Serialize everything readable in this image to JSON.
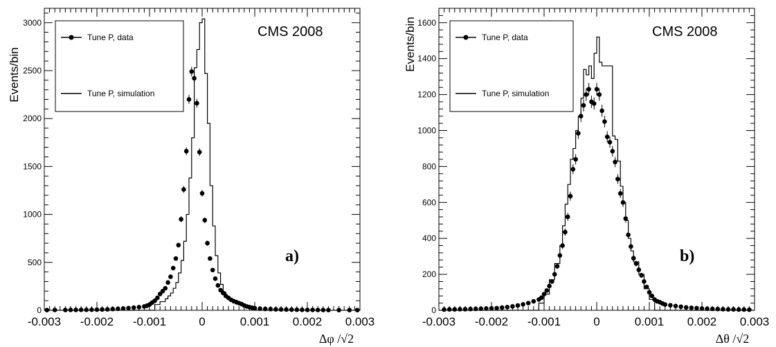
{
  "chart_data": [
    {
      "type": "histogram",
      "panel_label": "a)",
      "experiment_label": "CMS 2008",
      "ylabel": "Events/bin",
      "xlabel": "Δφ /√2",
      "xlim": [
        -0.003,
        0.003
      ],
      "ylim": [
        0,
        3150
      ],
      "xticks": [
        -0.003,
        -0.002,
        -0.001,
        0,
        0.001,
        0.002,
        0.003
      ],
      "xtick_labels": [
        "-0.003",
        "-0.002",
        "-0.001",
        "0",
        "0.001",
        "0.002",
        "0.003"
      ],
      "yticks": [
        0,
        500,
        1000,
        1500,
        2000,
        2500,
        3000
      ],
      "ytick_labels": [
        "0",
        "500",
        "1000",
        "1500",
        "2000",
        "2500",
        "3000"
      ],
      "legend_placement": "top-left",
      "series": [
        {
          "name": "Tune P, data",
          "style": "points-with-errors",
          "color": "#000000",
          "x": [
            -0.00295,
            -0.0028,
            -0.0026,
            -0.0025,
            -0.0024,
            -0.0023,
            -0.0022,
            -0.0021,
            -0.002,
            -0.0019,
            -0.0018,
            -0.0017,
            -0.0016,
            -0.0015,
            -0.0014,
            -0.0013,
            -0.0012,
            -0.0011,
            -0.00105,
            -0.001,
            -0.00095,
            -0.0009,
            -0.00085,
            -0.0008,
            -0.00075,
            -0.0007,
            -0.00065,
            -0.0006,
            -0.00055,
            -0.0005,
            -0.00045,
            -0.0004,
            -0.00035,
            -0.0003,
            -0.00025,
            -0.0002,
            -0.00015,
            -0.0001,
            -5e-05,
            0.0,
            5e-05,
            0.0001,
            0.00015,
            0.0002,
            0.00025,
            0.0003,
            0.00035,
            0.0004,
            0.00045,
            0.0005,
            0.00055,
            0.0006,
            0.00065,
            0.0007,
            0.00075,
            0.0008,
            0.00085,
            0.0009,
            0.00095,
            0.001,
            0.0011,
            0.0012,
            0.0013,
            0.0014,
            0.0015,
            0.0016,
            0.0017,
            0.0018,
            0.0019,
            0.002,
            0.0021,
            0.0022,
            0.0023,
            0.0024,
            0.0026,
            0.0028,
            0.00295
          ],
          "y": [
            2,
            3,
            3,
            4,
            4,
            5,
            5,
            6,
            7,
            9,
            10,
            13,
            16,
            19,
            23,
            28,
            33,
            40,
            48,
            60,
            80,
            100,
            130,
            170,
            200,
            230,
            290,
            350,
            440,
            540,
            680,
            950,
            1260,
            1660,
            2200,
            2490,
            2420,
            2160,
            1650,
            1220,
            940,
            700,
            540,
            420,
            330,
            260,
            210,
            180,
            150,
            130,
            110,
            95,
            85,
            75,
            65,
            50,
            40,
            33,
            27,
            22,
            17,
            14,
            12,
            10,
            9,
            8,
            7,
            6,
            5,
            4,
            4,
            3,
            3,
            2,
            2,
            2,
            2
          ],
          "note_x_fixed": [
            -0.002,
            -0.0015,
            -0.001,
            -0.0007,
            -0.0006,
            -0.0005,
            -0.0004,
            -0.0003,
            -0.0002,
            -0.00015,
            -0.0001,
            -5e-05,
            0.0,
            5e-05,
            0.0001,
            0.00015,
            0.0002,
            0.00025,
            0.0003,
            0.00035,
            0.0004,
            0.0005,
            0.0006,
            0.0007,
            0.0008,
            0.0009,
            0.001,
            0.0012,
            0.0015,
            0.002
          ]
        },
        {
          "name": "Tune P, simulation",
          "style": "step",
          "color": "#000000",
          "bin_edges": [
            -0.003,
            -0.0009,
            -0.0008,
            -0.0007,
            -0.00065,
            -0.0006,
            -0.00055,
            -0.0005,
            -0.00045,
            -0.0004,
            -0.00035,
            -0.0003,
            -0.00025,
            -0.0002,
            -0.00015,
            -0.0001,
            -5e-05,
            0.0,
            5e-05,
            0.0001,
            0.00015,
            0.0002,
            0.00025,
            0.0003,
            0.00035,
            0.0004,
            0.00045,
            0.0005,
            0.0006,
            0.0007,
            0.0008,
            0.0009,
            0.001,
            0.003
          ],
          "values": [
            0,
            60,
            90,
            120,
            150,
            180,
            230,
            290,
            390,
            520,
            720,
            1000,
            1380,
            1800,
            2530,
            2720,
            3000,
            3040,
            2470,
            1950,
            1300,
            880,
            570,
            390,
            270,
            190,
            140,
            110,
            80,
            60,
            40,
            20,
            0
          ]
        }
      ]
    },
    {
      "type": "histogram",
      "panel_label": "b)",
      "experiment_label": "CMS 2008",
      "ylabel": "Events/bin",
      "xlabel": "Δθ /√2",
      "xlim": [
        -0.003,
        0.003
      ],
      "ylim": [
        0,
        1680
      ],
      "xticks": [
        -0.003,
        -0.002,
        -0.001,
        0,
        0.001,
        0.002,
        0.003
      ],
      "xtick_labels": [
        "-0.003",
        "-0.002",
        "-0.001",
        "0",
        "0.001",
        "0.002",
        "0.003"
      ],
      "yticks": [
        0,
        200,
        400,
        600,
        800,
        1000,
        1200,
        1400,
        1600
      ],
      "ytick_labels": [
        "0",
        "200",
        "400",
        "600",
        "800",
        "1000",
        "1200",
        "1400",
        "1600"
      ],
      "legend_placement": "top-left",
      "series": [
        {
          "name": "Tune P, data",
          "style": "points-with-errors",
          "color": "#000000",
          "x": [
            -0.0029,
            -0.0028,
            -0.0027,
            -0.0026,
            -0.0025,
            -0.0024,
            -0.0023,
            -0.0022,
            -0.0021,
            -0.002,
            -0.0019,
            -0.0018,
            -0.0017,
            -0.0016,
            -0.0015,
            -0.0014,
            -0.0013,
            -0.0012,
            -0.0011,
            -0.00105,
            -0.001,
            -0.00095,
            -0.0009,
            -0.00085,
            -0.0008,
            -0.00075,
            -0.0007,
            -0.00065,
            -0.0006,
            -0.00055,
            -0.0005,
            -0.00045,
            -0.0004,
            -0.00035,
            -0.0003,
            -0.00025,
            -0.0002,
            -0.00015,
            -0.0001,
            -5e-05,
            0.0,
            5e-05,
            0.0001,
            0.00015,
            0.0002,
            0.00025,
            0.0003,
            0.00035,
            0.0004,
            0.00045,
            0.0005,
            0.00055,
            0.0006,
            0.00065,
            0.0007,
            0.00075,
            0.0008,
            0.00085,
            0.0009,
            0.00095,
            0.001,
            0.00105,
            0.0011,
            0.00115,
            0.0012,
            0.00125,
            0.0013,
            0.0014,
            0.0015,
            0.0016,
            0.0017,
            0.0018,
            0.0019,
            0.002,
            0.0021,
            0.0022,
            0.0023,
            0.0024,
            0.0025,
            0.0026,
            0.0027,
            0.0028,
            0.0029
          ],
          "y": [
            4,
            5,
            5,
            6,
            6,
            7,
            8,
            9,
            10,
            11,
            12,
            15,
            18,
            22,
            27,
            33,
            40,
            50,
            60,
            70,
            90,
            110,
            135,
            160,
            200,
            245,
            305,
            360,
            435,
            520,
            635,
            785,
            840,
            985,
            1080,
            1140,
            1200,
            1230,
            1160,
            1150,
            1230,
            1200,
            1110,
            1050,
            965,
            935,
            885,
            825,
            730,
            650,
            600,
            510,
            420,
            355,
            290,
            260,
            225,
            195,
            160,
            130,
            100,
            80,
            60,
            50,
            45,
            38,
            32,
            28,
            24,
            20,
            16,
            14,
            12,
            10,
            9,
            8,
            7,
            6,
            5,
            5,
            4,
            4,
            3
          ]
        },
        {
          "name": "Tune P, simulation",
          "style": "step",
          "color": "#000000",
          "bin_edges": [
            -0.003,
            -0.0011,
            -0.001,
            -0.0009,
            -0.0008,
            -0.0007,
            -0.00065,
            -0.0006,
            -0.00055,
            -0.0005,
            -0.00045,
            -0.0004,
            -0.00035,
            -0.0003,
            -0.00025,
            -0.0002,
            -0.00015,
            -0.0001,
            -5e-05,
            0.0,
            5e-05,
            0.0001,
            0.00015,
            0.0002,
            0.00025,
            0.0003,
            0.00035,
            0.0004,
            0.00045,
            0.0005,
            0.00055,
            0.0006,
            0.00065,
            0.0007,
            0.0008,
            0.0009,
            0.001,
            0.0011,
            0.003
          ],
          "values": [
            0,
            40,
            90,
            170,
            260,
            360,
            470,
            590,
            700,
            840,
            900,
            1000,
            1080,
            1180,
            1340,
            1310,
            1360,
            1290,
            1430,
            1520,
            1380,
            1360,
            1360,
            1360,
            1360,
            970,
            950,
            830,
            690,
            600,
            500,
            400,
            330,
            270,
            200,
            120,
            60,
            0
          ]
        }
      ]
    }
  ]
}
